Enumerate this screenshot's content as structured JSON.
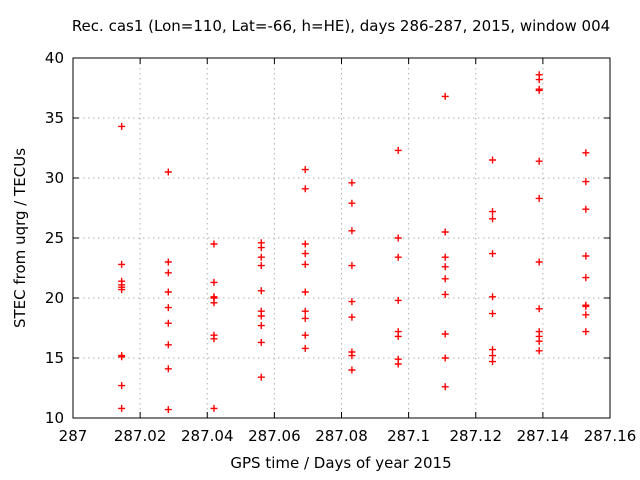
{
  "colors": {
    "marker": "#ff0000",
    "grid": "#b0b0b0",
    "axis": "#000000",
    "background": "#ffffff"
  },
  "chart_data": {
    "type": "scatter",
    "title": "Rec. cas1 (Lon=110, Lat=-66, h=HE), days 286-287, 2015, window 004",
    "xlabel": "GPS time / Days of year 2015",
    "ylabel": "STEC from uqrg / TECUs",
    "xlim": [
      287.0,
      287.16
    ],
    "ylim": [
      10,
      40
    ],
    "grid": true,
    "legend": "none",
    "marker": {
      "shape": "plus",
      "color": "#ff0000",
      "size": 7
    },
    "xticks": {
      "values": [
        287.0,
        287.02,
        287.04,
        287.06,
        287.08,
        287.1,
        287.12,
        287.14,
        287.16
      ],
      "labels": [
        "287",
        "287.02",
        "287.04",
        "287.06",
        "287.08",
        "287.1",
        "287.12",
        "287.14",
        "287.16"
      ]
    },
    "yticks": {
      "values": [
        10,
        15,
        20,
        25,
        30,
        35,
        40
      ],
      "labels": [
        "10",
        "15",
        "20",
        "25",
        "30",
        "35",
        "40"
      ]
    },
    "series": [
      {
        "name": "STEC from uqrg",
        "points": [
          [
            287.0145,
            34.3
          ],
          [
            287.0145,
            22.8
          ],
          [
            287.0145,
            21.4
          ],
          [
            287.0145,
            21.1
          ],
          [
            287.0145,
            20.9
          ],
          [
            287.0145,
            20.7
          ],
          [
            287.0145,
            15.2
          ],
          [
            287.0145,
            15.1
          ],
          [
            287.0145,
            12.7
          ],
          [
            287.0145,
            10.8
          ],
          [
            287.0284,
            30.5
          ],
          [
            287.0284,
            23.0
          ],
          [
            287.0284,
            22.1
          ],
          [
            287.0284,
            20.5
          ],
          [
            287.0284,
            19.2
          ],
          [
            287.0284,
            17.9
          ],
          [
            287.0284,
            16.1
          ],
          [
            287.0284,
            14.1
          ],
          [
            287.0284,
            10.7
          ],
          [
            287.042,
            24.5
          ],
          [
            287.042,
            21.3
          ],
          [
            287.042,
            20.1
          ],
          [
            287.042,
            20.0
          ],
          [
            287.042,
            19.6
          ],
          [
            287.042,
            16.9
          ],
          [
            287.042,
            16.6
          ],
          [
            287.042,
            10.8
          ],
          [
            287.0561,
            24.6
          ],
          [
            287.0561,
            24.2
          ],
          [
            287.0561,
            23.4
          ],
          [
            287.0561,
            22.7
          ],
          [
            287.0561,
            20.6
          ],
          [
            287.0561,
            18.9
          ],
          [
            287.0561,
            18.5
          ],
          [
            287.0561,
            17.7
          ],
          [
            287.0561,
            16.3
          ],
          [
            287.0561,
            13.4
          ],
          [
            287.0692,
            30.7
          ],
          [
            287.0692,
            29.1
          ],
          [
            287.0692,
            24.5
          ],
          [
            287.0692,
            23.7
          ],
          [
            287.0692,
            22.8
          ],
          [
            287.0692,
            20.5
          ],
          [
            287.0692,
            18.9
          ],
          [
            287.0692,
            18.3
          ],
          [
            287.0692,
            16.9
          ],
          [
            287.0692,
            15.8
          ],
          [
            287.0831,
            29.6
          ],
          [
            287.0831,
            27.9
          ],
          [
            287.0831,
            25.6
          ],
          [
            287.0831,
            22.7
          ],
          [
            287.0831,
            19.7
          ],
          [
            287.0831,
            18.4
          ],
          [
            287.0831,
            15.5
          ],
          [
            287.0831,
            15.2
          ],
          [
            287.0831,
            14.0
          ],
          [
            287.0969,
            32.3
          ],
          [
            287.0969,
            25.0
          ],
          [
            287.0969,
            23.4
          ],
          [
            287.0969,
            19.8
          ],
          [
            287.0969,
            17.2
          ],
          [
            287.0969,
            16.8
          ],
          [
            287.0969,
            14.9
          ],
          [
            287.0969,
            14.5
          ],
          [
            287.1109,
            36.8
          ],
          [
            287.1109,
            25.5
          ],
          [
            287.1109,
            23.4
          ],
          [
            287.1109,
            22.6
          ],
          [
            287.1109,
            21.6
          ],
          [
            287.1109,
            20.3
          ],
          [
            287.1109,
            17.0
          ],
          [
            287.1109,
            15.0
          ],
          [
            287.1109,
            12.6
          ],
          [
            287.125,
            31.5
          ],
          [
            287.125,
            27.2
          ],
          [
            287.125,
            26.6
          ],
          [
            287.125,
            23.7
          ],
          [
            287.125,
            20.1
          ],
          [
            287.125,
            18.7
          ],
          [
            287.125,
            15.7
          ],
          [
            287.125,
            15.2
          ],
          [
            287.125,
            14.7
          ],
          [
            287.1389,
            38.6
          ],
          [
            287.1389,
            38.2
          ],
          [
            287.1389,
            37.4
          ],
          [
            287.1389,
            37.3
          ],
          [
            287.1389,
            31.4
          ],
          [
            287.1389,
            28.3
          ],
          [
            287.1389,
            23.0
          ],
          [
            287.1389,
            19.1
          ],
          [
            287.1389,
            17.2
          ],
          [
            287.1389,
            16.8
          ],
          [
            287.1389,
            16.4
          ],
          [
            287.1389,
            15.6
          ],
          [
            287.1528,
            32.1
          ],
          [
            287.1528,
            29.7
          ],
          [
            287.1528,
            27.4
          ],
          [
            287.1528,
            23.5
          ],
          [
            287.1528,
            21.7
          ],
          [
            287.1528,
            19.4
          ],
          [
            287.1528,
            19.3
          ],
          [
            287.1528,
            18.6
          ],
          [
            287.1528,
            17.2
          ]
        ]
      }
    ]
  }
}
